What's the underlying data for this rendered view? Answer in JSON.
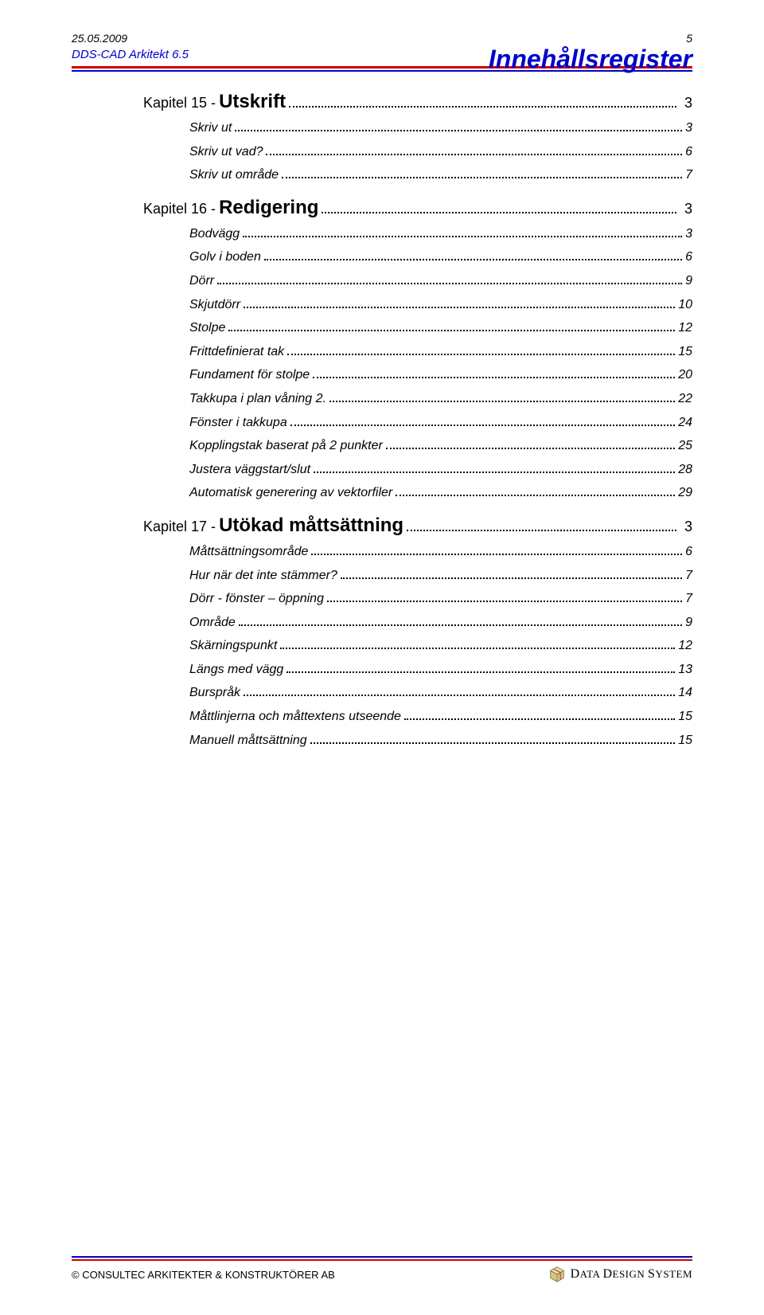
{
  "header": {
    "date": "25.05.2009",
    "page_number": "5",
    "product": "DDS-CAD Arkitekt 6.5",
    "title": "Innehållsregister"
  },
  "colors": {
    "blue": "#0000cc",
    "red": "#cc0000",
    "text": "#000000",
    "background": "#ffffff"
  },
  "toc": [
    {
      "chapter_label": "Kapitel 15 - ",
      "chapter_title": "Utskrift",
      "chapter_page": "3",
      "entries": [
        {
          "title": "Skriv ut",
          "page": "3"
        },
        {
          "title": "Skriv ut vad?",
          "page": "6"
        },
        {
          "title": "Skriv ut område",
          "page": "7"
        }
      ]
    },
    {
      "chapter_label": "Kapitel 16 - ",
      "chapter_title": "Redigering",
      "chapter_page": "3",
      "entries": [
        {
          "title": "Bodvägg",
          "page": "3"
        },
        {
          "title": "Golv i boden",
          "page": "6"
        },
        {
          "title": "Dörr",
          "page": "9"
        },
        {
          "title": "Skjutdörr",
          "page": "10"
        },
        {
          "title": "Stolpe",
          "page": "12"
        },
        {
          "title": "Frittdefinierat tak",
          "page": "15"
        },
        {
          "title": "Fundament för stolpe",
          "page": "20"
        },
        {
          "title": "Takkupa i plan våning 2.",
          "page": "22"
        },
        {
          "title": "Fönster i takkupa",
          "page": "24"
        },
        {
          "title": "Kopplingstak baserat på 2 punkter",
          "page": "25"
        },
        {
          "title": "Justera väggstart/slut",
          "page": "28"
        },
        {
          "title": "Automatisk generering av vektorfiler",
          "page": "29"
        }
      ]
    },
    {
      "chapter_label": "Kapitel 17 - ",
      "chapter_title": "Utökad måttsättning",
      "chapter_page": "3",
      "entries": [
        {
          "title": "Måttsättningsområde",
          "page": "6"
        },
        {
          "title": "Hur när det inte stämmer?",
          "page": "7"
        },
        {
          "title": "Dörr - fönster – öppning",
          "page": "7"
        },
        {
          "title": "Område",
          "page": "9"
        },
        {
          "title": "Skärningspunkt",
          "page": "12"
        },
        {
          "title": "Längs med vägg",
          "page": "13"
        },
        {
          "title": "Burspråk",
          "page": "14"
        },
        {
          "title": "Måttlinjerna och måttextens utseende",
          "page": "15"
        },
        {
          "title": "Manuell måttsättning",
          "page": "15"
        }
      ]
    }
  ],
  "footer": {
    "copyright": "© CONSULTEC ARKITEKTER & KONSTRUKTÖRER AB",
    "logo_text_1": "D",
    "logo_text_2": "ATA ",
    "logo_text_3": "D",
    "logo_text_4": "ESIGN ",
    "logo_text_5": "S",
    "logo_text_6": "YSTEM"
  }
}
